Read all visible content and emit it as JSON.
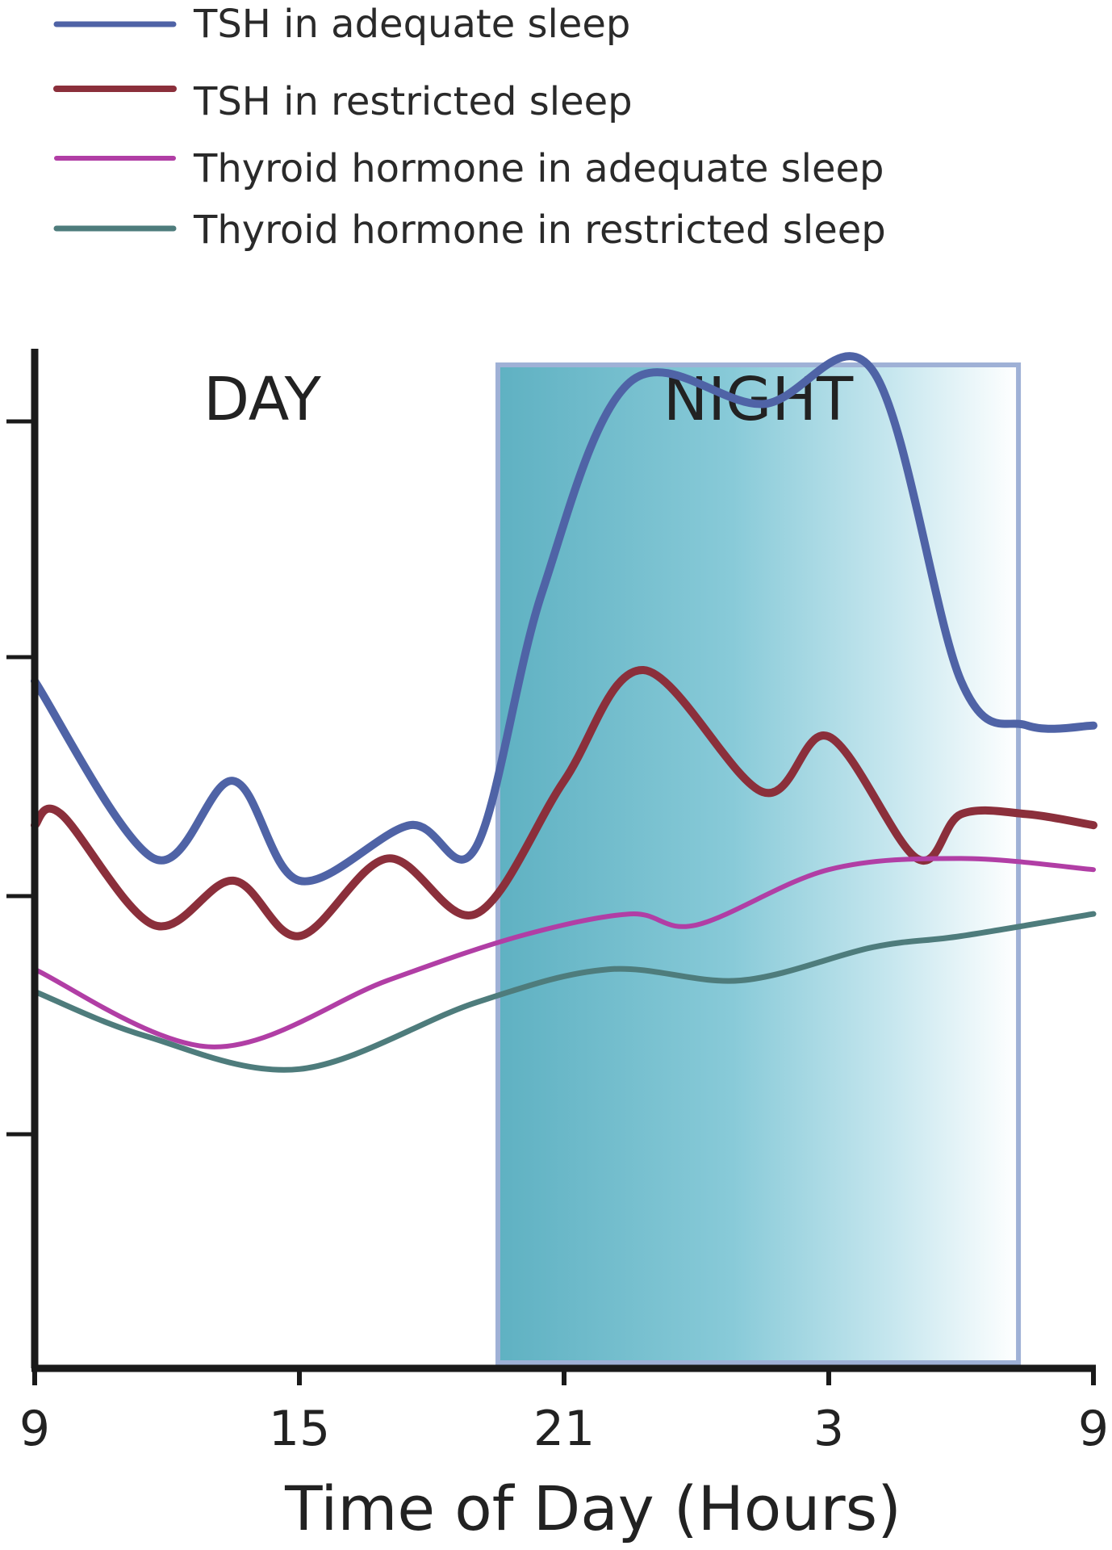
{
  "chart_data": {
    "type": "line",
    "title": "",
    "xlabel": "Time of Day (Hours)",
    "ylabel": "",
    "x_ticks": [
      "9",
      "15",
      "21",
      "3",
      "9"
    ],
    "x_range": [
      0,
      24
    ],
    "y_range": [
      0,
      100
    ],
    "regions": [
      {
        "label": "DAY",
        "from": 0,
        "to": 10.5
      },
      {
        "label": "NIGHT",
        "from": 10.5,
        "to": 22.3
      }
    ],
    "legend_position": "top-left",
    "series": [
      {
        "name": "TSH in adequate sleep",
        "color": "#4f63a6",
        "points": [
          [
            0,
            62
          ],
          [
            2.7,
            46
          ],
          [
            4.5,
            53
          ],
          [
            6,
            44
          ],
          [
            8.5,
            49
          ],
          [
            10,
            47
          ],
          [
            11.5,
            70
          ],
          [
            13.5,
            89
          ],
          [
            16.5,
            87
          ],
          [
            19,
            90
          ],
          [
            21,
            62
          ],
          [
            22.5,
            58
          ],
          [
            24,
            58
          ]
        ]
      },
      {
        "name": "TSH in restricted sleep",
        "color": "#8b2f3b",
        "points": [
          [
            0,
            49
          ],
          [
            0.6,
            50
          ],
          [
            2.7,
            40
          ],
          [
            4.5,
            44
          ],
          [
            6,
            39
          ],
          [
            8,
            46
          ],
          [
            10,
            41
          ],
          [
            12,
            53
          ],
          [
            13.8,
            63
          ],
          [
            16.5,
            52
          ],
          [
            18,
            57
          ],
          [
            20,
            46
          ],
          [
            21,
            50
          ],
          [
            22.5,
            50
          ],
          [
            24,
            49
          ]
        ]
      },
      {
        "name": "Thyroid hormone in adequate sleep",
        "color": "#b13ea5",
        "points": [
          [
            0,
            36
          ],
          [
            4,
            29
          ],
          [
            8,
            35
          ],
          [
            11,
            39
          ],
          [
            13.5,
            41
          ],
          [
            15,
            40
          ],
          [
            18,
            45
          ],
          [
            21,
            46
          ],
          [
            24,
            45
          ]
        ]
      },
      {
        "name": "Thyroid hormone in restricted sleep",
        "color": "#4e7c7c",
        "points": [
          [
            0,
            34
          ],
          [
            2.5,
            30
          ],
          [
            6,
            27
          ],
          [
            10,
            33
          ],
          [
            13,
            36
          ],
          [
            16,
            35
          ],
          [
            19,
            38
          ],
          [
            21,
            39
          ],
          [
            24,
            41
          ]
        ]
      }
    ]
  }
}
